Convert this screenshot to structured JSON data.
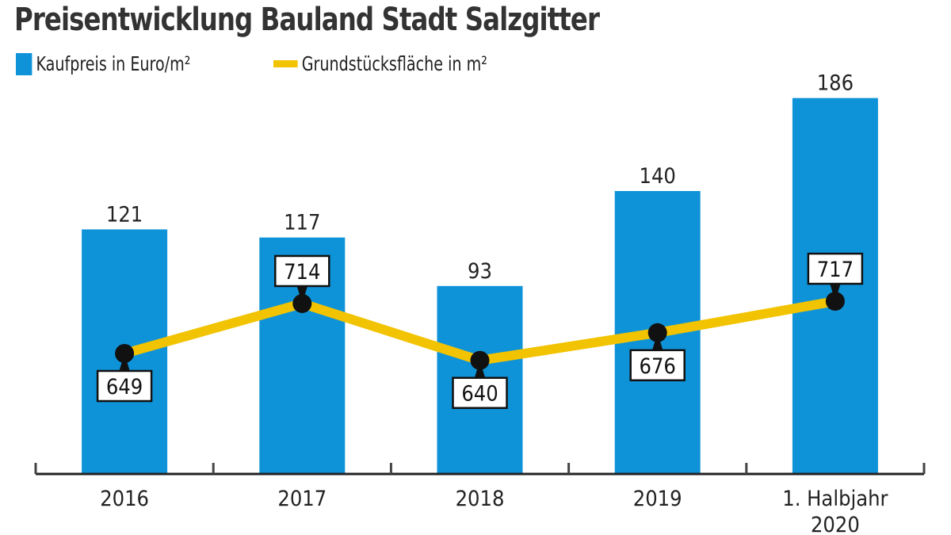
{
  "chart_data": {
    "type": "bar+line",
    "title": "Preisentwicklung Bauland Stadt Salzgitter",
    "categories": [
      "2016",
      "2017",
      "2018",
      "2019",
      "1. Halbjahr 2020"
    ],
    "series": [
      {
        "name": "Kaufpreis in Euro/m²",
        "type": "bar",
        "color": "#0f93d8",
        "values": [
          121,
          117,
          93,
          140,
          186
        ]
      },
      {
        "name": "Grundstücksfläche in m²",
        "type": "line",
        "color": "#f2c300",
        "values": [
          649,
          714,
          640,
          676,
          717
        ],
        "label_position": [
          "below",
          "above",
          "below",
          "below",
          "above"
        ]
      }
    ],
    "legend": "top-left",
    "grid": false
  }
}
